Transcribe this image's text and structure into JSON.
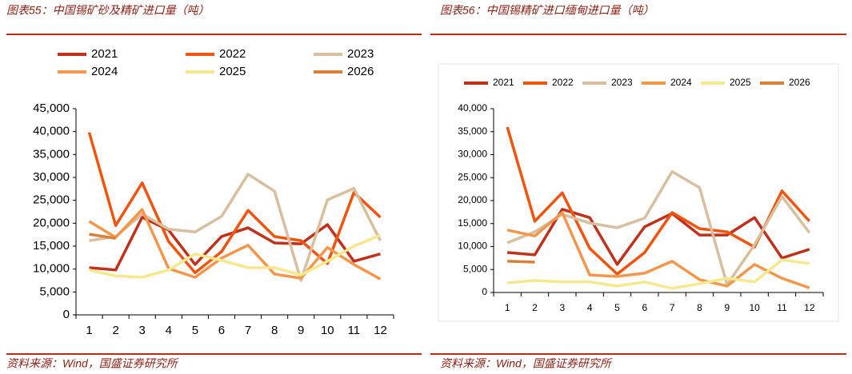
{
  "chart_data": [
    {
      "type": "line",
      "title": "图表55：中国锡矿砂及精矿进口量（吨）",
      "source": "资料来源：Wind，国盛证券研究所",
      "categories": [
        "1",
        "2",
        "3",
        "4",
        "5",
        "6",
        "7",
        "8",
        "9",
        "10",
        "11",
        "12"
      ],
      "ylim": [
        0,
        45000
      ],
      "yticks": [
        0,
        {
          "value": 5000,
          "label": "5,000"
        },
        {
          "value": 10000,
          "label": "10,000"
        },
        {
          "value": 15000,
          "label": "15,000"
        },
        {
          "value": 20000,
          "label": "20,000"
        },
        {
          "value": 25000,
          "label": "25,000"
        },
        {
          "value": 30000,
          "label": "30,000"
        },
        {
          "value": 35000,
          "label": "35,000"
        },
        {
          "value": 40000,
          "label": "40,000"
        },
        {
          "value": 45000,
          "label": "45,000"
        }
      ],
      "grid": false,
      "legend": "top",
      "series": [
        {
          "name": "2021",
          "color": "#c0311c",
          "values": [
            10300,
            9800,
            21300,
            18500,
            11000,
            17100,
            19000,
            15700,
            15500,
            19700,
            11700,
            13300
          ]
        },
        {
          "name": "2022",
          "color": "#f0540e",
          "values": [
            39800,
            19500,
            28800,
            16000,
            9200,
            13800,
            22800,
            17100,
            16200,
            11200,
            26700,
            21300
          ]
        },
        {
          "name": "2023",
          "color": "#d8bf9f",
          "values": [
            16200,
            17100,
            22000,
            18700,
            18100,
            21500,
            30700,
            27000,
            7500,
            25100,
            27600,
            16200
          ]
        },
        {
          "name": "2024",
          "color": "#f5964d",
          "values": [
            20400,
            16900,
            23000,
            10100,
            8200,
            12400,
            15200,
            8900,
            8000,
            14700,
            11000,
            7800
          ]
        },
        {
          "name": "2025",
          "color": "#f6e88f",
          "values": [
            9800,
            8500,
            8200,
            9800,
            13300,
            11900,
            10300,
            10300,
            8700,
            11700,
            15000,
            17400
          ]
        },
        {
          "name": "2026",
          "color": "#d9803a",
          "values": [
            17600,
            16700,
            null,
            null,
            null,
            null,
            null,
            null,
            null,
            null,
            null,
            null
          ]
        }
      ]
    },
    {
      "type": "line",
      "title": "图表56：中国锡精矿进口缅甸进口量（吨）",
      "source": "资料来源：Wind，国盛证券研究所",
      "categories": [
        "1",
        "2",
        "3",
        "4",
        "5",
        "6",
        "7",
        "8",
        "9",
        "10",
        "11",
        "12"
      ],
      "ylim": [
        0,
        40000
      ],
      "yticks": [
        0,
        {
          "value": 5000,
          "label": "5,000"
        },
        {
          "value": 10000,
          "label": "10,000"
        },
        {
          "value": 15000,
          "label": "15,000"
        },
        {
          "value": 20000,
          "label": "20,000"
        },
        {
          "value": 25000,
          "label": "25,000"
        },
        {
          "value": 30000,
          "label": "30,000"
        },
        {
          "value": 35000,
          "label": "35,000"
        },
        {
          "value": 40000,
          "label": "40,000"
        }
      ],
      "grid": false,
      "legend": "top",
      "series": [
        {
          "name": "2021",
          "color": "#c0311c",
          "values": [
            8700,
            8200,
            18100,
            16300,
            6100,
            14300,
            17200,
            12500,
            12500,
            16300,
            7500,
            9400
          ]
        },
        {
          "name": "2022",
          "color": "#f0540e",
          "values": [
            36000,
            15500,
            21700,
            9600,
            4000,
            8700,
            17400,
            13900,
            13200,
            9900,
            22100,
            15500
          ]
        },
        {
          "name": "2023",
          "color": "#d8bf9f",
          "values": [
            10800,
            13200,
            17000,
            15100,
            14100,
            16200,
            26300,
            22800,
            1700,
            10400,
            20900,
            13000
          ]
        },
        {
          "name": "2024",
          "color": "#f5964d",
          "values": [
            13600,
            12300,
            17400,
            3800,
            3500,
            4200,
            6800,
            2800,
            1400,
            6100,
            3100,
            1000
          ]
        },
        {
          "name": "2025",
          "color": "#f6e88f",
          "values": [
            2100,
            2600,
            2300,
            2300,
            1400,
            2300,
            900,
            1900,
            3100,
            2300,
            7100,
            6300
          ]
        },
        {
          "name": "2026",
          "color": "#d9803a",
          "values": [
            6800,
            6600,
            null,
            null,
            null,
            null,
            null,
            null,
            null,
            null,
            null,
            null
          ]
        }
      ]
    }
  ]
}
